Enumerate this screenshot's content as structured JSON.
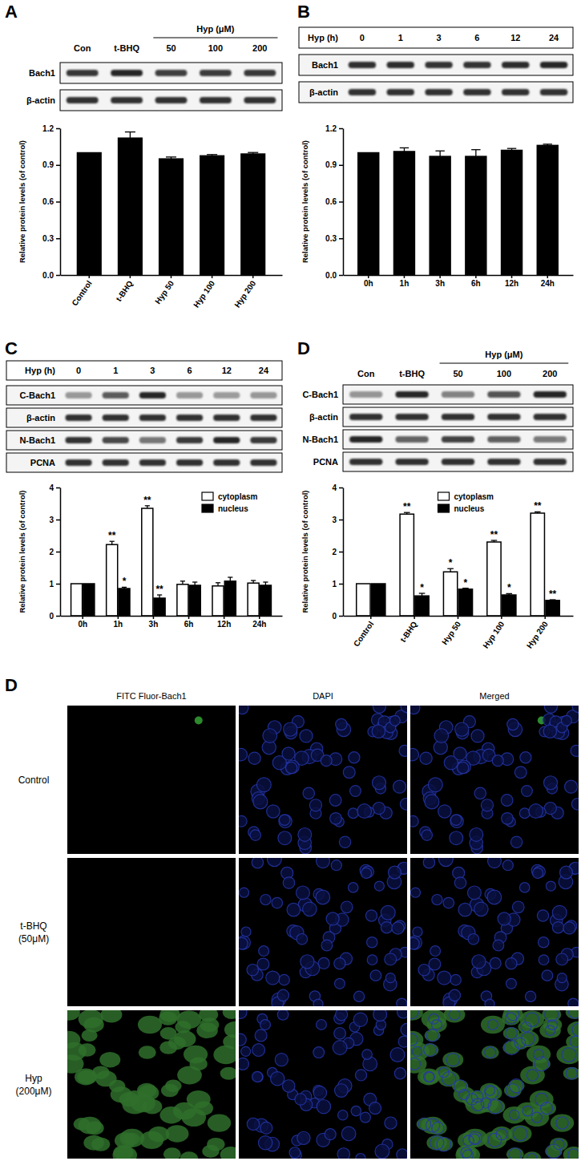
{
  "chart_data": [
    {
      "type": "bar",
      "categories": [
        "Control",
        "t-BHQ",
        "Hyp 50",
        "Hyp 100",
        "Hyp 200"
      ],
      "values": [
        1,
        1.12,
        0.95,
        0.975,
        0.99
      ],
      "errors": [
        null,
        0.05,
        0.015,
        0.01,
        0.012
      ],
      "color": "#000000",
      "ylim": [
        0,
        1.2
      ],
      "yticks": [
        {
          "value": 0,
          "label": "0.0"
        },
        0.3,
        0.6,
        0.9,
        1.2
      ],
      "ylabel": "Relative protein levels (of control)"
    },
    {
      "type": "bar",
      "categories": [
        "0h",
        "1h",
        "3h",
        "6h",
        "12h",
        "24h"
      ],
      "values": [
        1,
        1.01,
        0.97,
        0.97,
        1.02,
        1.06
      ],
      "errors": [
        null,
        0.03,
        0.045,
        0.055,
        0.015,
        0.01
      ],
      "color": "#000000",
      "ylim": [
        0,
        1.2
      ],
      "yticks": [
        {
          "value": 0,
          "label": "0.0"
        },
        0.3,
        0.6,
        0.9,
        1.2
      ],
      "ylabel": "Relative protein levels (of control)"
    },
    {
      "type": "bar",
      "categories": [
        "0h",
        "1h",
        "3h",
        "6h",
        "12h",
        "24h"
      ],
      "series": [
        {
          "name": "cytoplasm",
          "color": "#ffffff",
          "values": [
            1,
            2.22,
            3.35,
            0.98,
            0.93,
            1.02
          ],
          "errors": [
            null,
            0.1,
            0.08,
            0.1,
            0.1,
            0.08
          ],
          "significance": [
            null,
            "**",
            "**",
            null,
            null,
            null
          ]
        },
        {
          "name": "nucleus",
          "color": "#000000",
          "values": [
            1,
            0.85,
            0.55,
            0.95,
            1.08,
            0.95
          ],
          "errors": [
            null,
            0.04,
            0.1,
            0.1,
            0.12,
            0.1
          ],
          "significance": [
            null,
            "*",
            "**",
            null,
            null,
            null
          ]
        }
      ],
      "ylim": [
        0,
        4
      ],
      "yticks": [
        0,
        1,
        2,
        3,
        4
      ],
      "ylabel": "Relative protein levels (of control)",
      "legend": "top-right"
    },
    {
      "type": "bar",
      "categories": [
        "Control",
        "t-BHQ",
        "Hyp 50",
        "Hyp 100",
        "Hyp 200"
      ],
      "series": [
        {
          "name": "cytoplasm",
          "color": "#ffffff",
          "values": [
            1,
            3.17,
            1.37,
            2.3,
            3.2
          ],
          "errors": [
            null,
            0.05,
            0.1,
            0.05,
            0.04
          ],
          "significance": [
            null,
            "**",
            "*",
            "**",
            "**"
          ]
        },
        {
          "name": "nucleus",
          "color": "#000000",
          "values": [
            1,
            0.62,
            0.83,
            0.65,
            0.48
          ],
          "errors": [
            null,
            0.08,
            0.03,
            0.04,
            0.02
          ],
          "significance": [
            null,
            "*",
            "*",
            "*",
            "**"
          ]
        }
      ],
      "ylim": [
        0,
        4
      ],
      "yticks": [
        0,
        1,
        2,
        3,
        4
      ],
      "ylabel": "Relative protein levels (of control)",
      "legend": "top"
    }
  ],
  "blots": [
    {
      "panel": "A",
      "header": {
        "lanes": [
          "Con",
          "t-BHQ"
        ],
        "group": {
          "label": "Hyp (μM)",
          "lanes": [
            "50",
            "100",
            "200"
          ]
        }
      },
      "rows": [
        "Bach1",
        "β-actin"
      ]
    },
    {
      "panel": "B",
      "header": {
        "label": "Hyp (h)",
        "lanes": [
          "0",
          "1",
          "3",
          "6",
          "12",
          "24"
        ]
      },
      "rows": [
        "Bach1",
        "β-actin"
      ]
    },
    {
      "panel": "C",
      "header": {
        "label": "Hyp (h)",
        "lanes": [
          "0",
          "1",
          "3",
          "6",
          "12",
          "24"
        ]
      },
      "rows": [
        "C-Bach1",
        "β-actin",
        "N-Bach1",
        "PCNA"
      ]
    },
    {
      "panel": "D",
      "header": {
        "lanes": [
          "Con",
          "t-BHQ"
        ],
        "group": {
          "label": "Hyp (μM)",
          "lanes": [
            "50",
            "100",
            "200"
          ]
        }
      },
      "rows": [
        "C-Bach1",
        "β-actin",
        "N-Bach1",
        "PCNA"
      ]
    }
  ],
  "micrographs": {
    "panel": "D",
    "columns": [
      "FITC Fluor-Bach1",
      "DAPI",
      "Merged"
    ],
    "rows": [
      [
        "Control"
      ],
      [
        "t-BHQ",
        "(50μM)"
      ],
      [
        "Hyp",
        "(200μM)"
      ]
    ]
  }
}
